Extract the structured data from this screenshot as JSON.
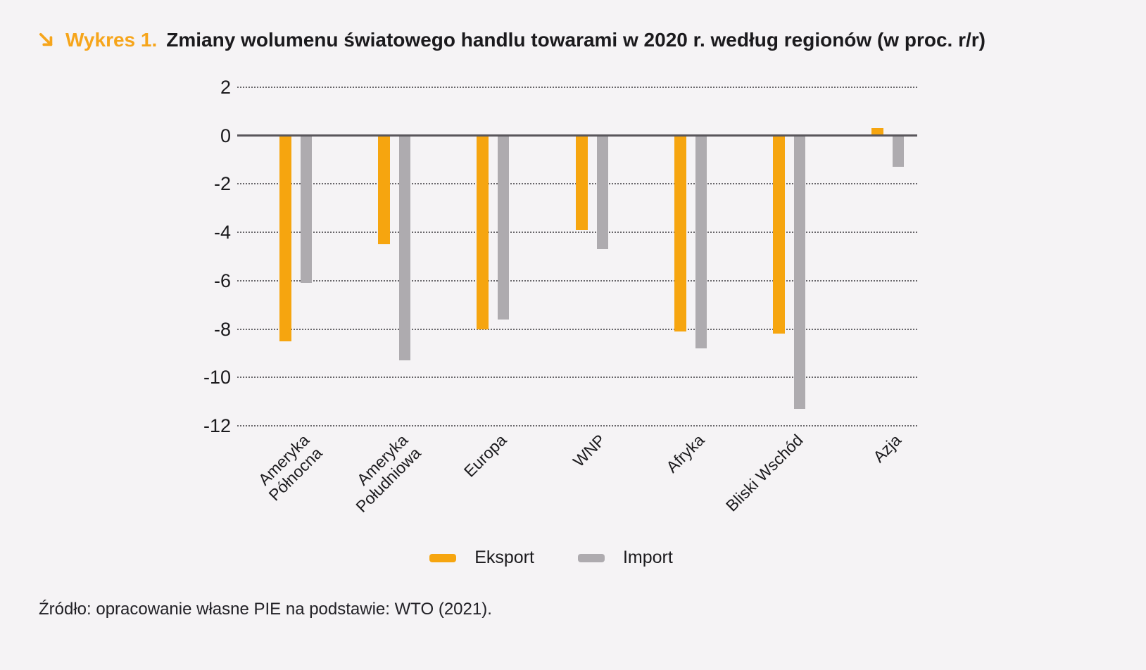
{
  "header": {
    "arrow_icon": "arrow-down-right",
    "chart_label": "Wykres 1.",
    "title_text": "Zmiany wolumenu światowego handlu towarami w 2020 r. według regionów (w proc. r/r)"
  },
  "chart_data": {
    "type": "bar",
    "title": "Zmiany wolumenu światowego handlu towarami w 2020 r. według regionów (w proc. r/r)",
    "categories": [
      "Ameryka\nPółnocna",
      "Ameryka\nPołudniowa",
      "Europa",
      "WNP",
      "Afryka",
      "Bliski Wschód",
      "Azja"
    ],
    "series": [
      {
        "name": "Eksport",
        "color": "#F6A50F",
        "values": [
          -8.5,
          -4.5,
          -8.0,
          -3.9,
          -8.1,
          -8.2,
          0.3
        ]
      },
      {
        "name": "Import",
        "color": "#AEABAF",
        "values": [
          -6.1,
          -9.3,
          -7.6,
          -4.7,
          -8.8,
          -11.3,
          -1.3
        ]
      }
    ],
    "xlabel": "",
    "ylabel": "",
    "ylim": [
      -12,
      2
    ],
    "yticks": [
      2,
      0,
      -2,
      -4,
      -6,
      -8,
      -10,
      -12
    ],
    "grid": "horizontal-dotted",
    "legend_position": "bottom"
  },
  "colors": {
    "accent_orange": "#F6A50F",
    "import_gray": "#AEABAF",
    "background": "#F5F3F5",
    "text": "#1B1A1D",
    "zero_line": "#59565B"
  },
  "footer": {
    "source": "Źródło: opracowanie własne PIE na podstawie: WTO (2021)."
  }
}
